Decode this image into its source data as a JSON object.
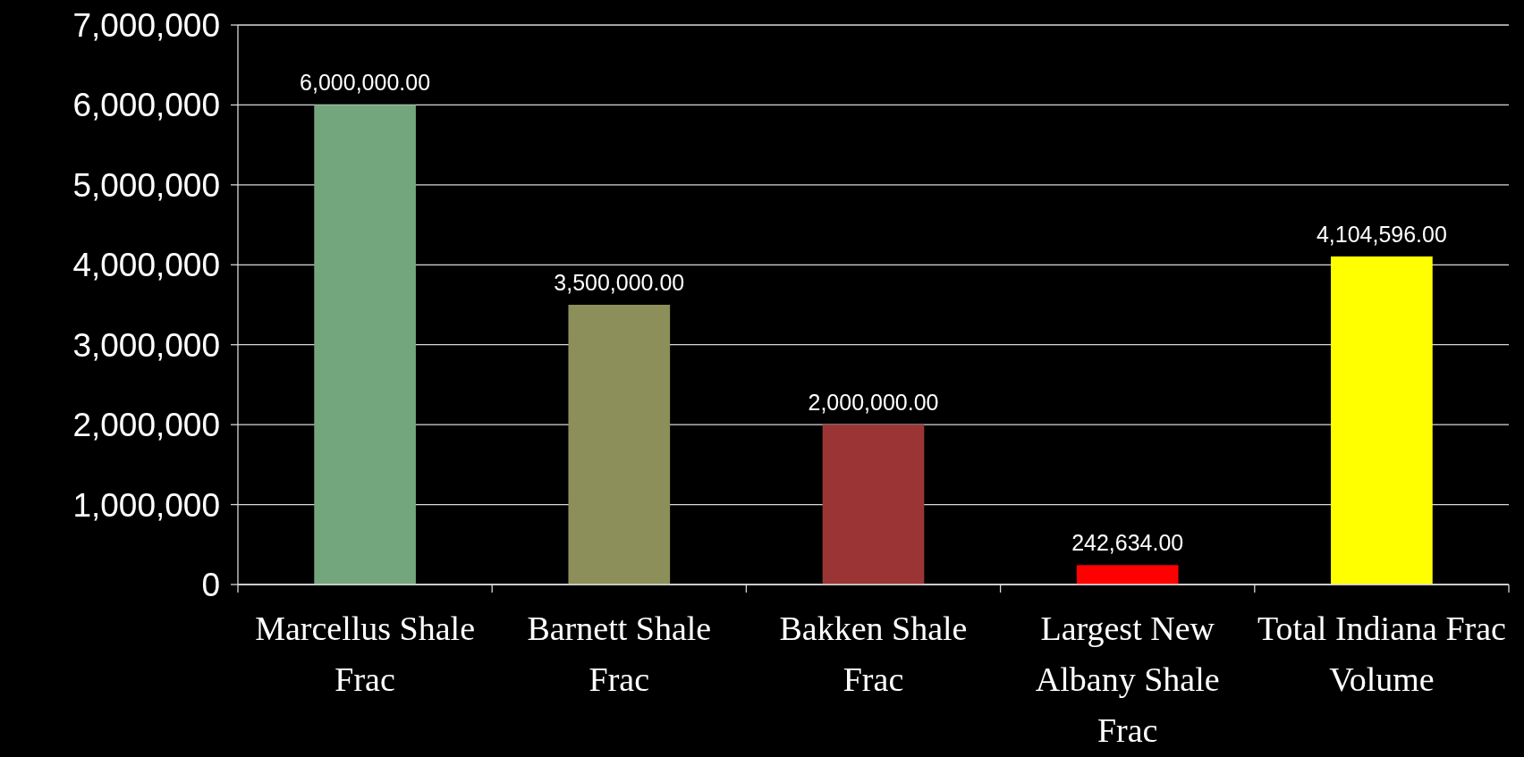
{
  "chart_data": {
    "type": "bar",
    "categories": [
      "Marcellus Shale Frac",
      "Barnett Shale Frac",
      "Bakken Shale Frac",
      "Largest New Albany Shale Frac",
      "Total Indiana Frac Volume"
    ],
    "values": [
      6000000,
      3500000,
      2000000,
      242634,
      4104596
    ],
    "colors": [
      "#73a67c",
      "#8c8f5a",
      "#9b3535",
      "#ff0000",
      "#ffff00"
    ],
    "value_labels": [
      "6,000,000.00",
      "3,500,000.00",
      "2,000,000.00",
      "242,634.00",
      "4,104,596.00"
    ],
    "ylim": [
      0,
      7000000
    ],
    "yticks": [
      {
        "value": 0,
        "label": "0"
      },
      {
        "value": 1000000,
        "label": "1,000,000"
      },
      {
        "value": 2000000,
        "label": "2,000,000"
      },
      {
        "value": 3000000,
        "label": "3,000,000"
      },
      {
        "value": 4000000,
        "label": "4,000,000"
      },
      {
        "value": 5000000,
        "label": "5,000,000"
      },
      {
        "value": 6000000,
        "label": "6,000,000"
      },
      {
        "value": 7000000,
        "label": "7,000,000"
      }
    ],
    "grid": "y"
  }
}
